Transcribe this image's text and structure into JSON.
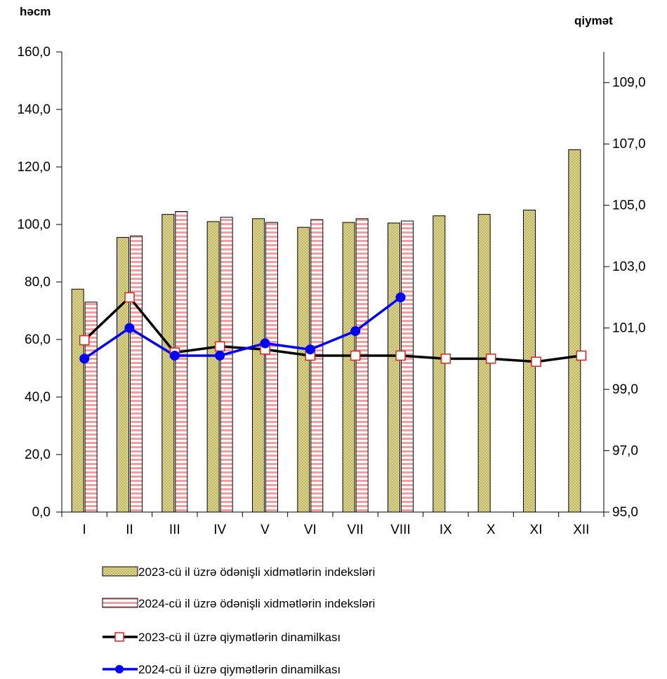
{
  "chart_data": {
    "type": "bar",
    "categories": [
      "I",
      "II",
      "III",
      "IV",
      "V",
      "VI",
      "VII",
      "VIII",
      "IX",
      "X",
      "XI",
      "XII"
    ],
    "y_left": {
      "title": "həcm",
      "min": 0,
      "max": 160,
      "step": 20,
      "tick_labels": [
        "0,0",
        "20,0",
        "40,0",
        "60,0",
        "80,0",
        "100,0",
        "120,0",
        "140,0",
        "160,0"
      ]
    },
    "y_right": {
      "title": "qiymət",
      "min": 95,
      "max": 110,
      "step": 2,
      "tick_labels": [
        "95,0",
        "97,0",
        "99,0",
        "101,0",
        "103,0",
        "105,0",
        "107,0",
        "109,0"
      ]
    },
    "series": [
      {
        "name": "2023-cü il üzrə ödənişli xidmətlərin indeksləri",
        "kind": "bar",
        "axis": "left",
        "pattern": "yellow-checker",
        "values": [
          77.5,
          95.5,
          103.5,
          101.0,
          102.0,
          99.0,
          100.7,
          100.5,
          103.0,
          103.5,
          105.0,
          126.0
        ]
      },
      {
        "name": "2024-cü il üzrə ödənişli xidmətlərin indeksləri",
        "kind": "bar",
        "axis": "left",
        "pattern": "red-stripes",
        "values": [
          73.0,
          96.0,
          104.5,
          102.5,
          100.7,
          101.7,
          102.0,
          101.2,
          null,
          null,
          null,
          null
        ]
      },
      {
        "name": "2023-cü il üzrə qiymətlərin dinamilkası",
        "kind": "line",
        "axis": "right",
        "line_color": "#000000",
        "marker": "square",
        "values": [
          100.6,
          102.0,
          100.2,
          100.4,
          100.3,
          100.1,
          100.1,
          100.1,
          100.0,
          100.0,
          99.9,
          100.1
        ]
      },
      {
        "name": "2024-cü il üzrə qiymətlərin dinamilkası",
        "kind": "line",
        "axis": "right",
        "line_color": "#0000ff",
        "marker": "circle",
        "values": [
          100.0,
          101.0,
          100.1,
          100.1,
          100.5,
          100.3,
          100.9,
          102.0,
          null,
          null,
          null,
          null
        ]
      }
    ],
    "grid": false,
    "legend_placement": "bottom"
  }
}
